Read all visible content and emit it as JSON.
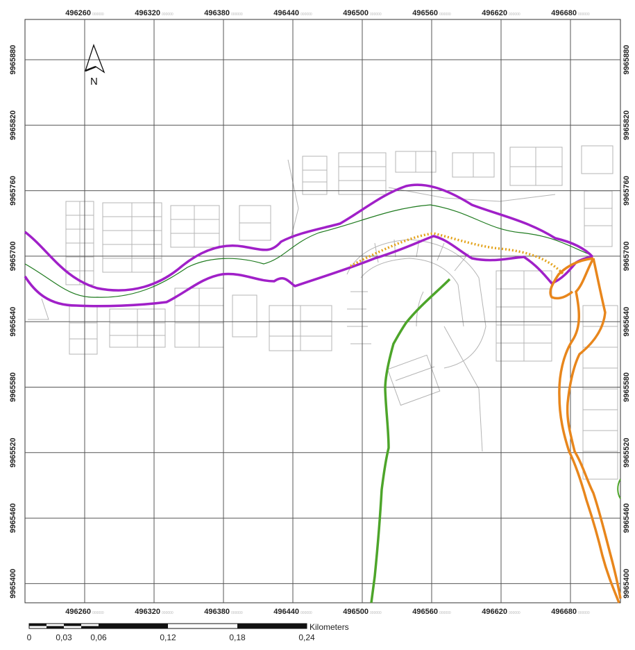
{
  "map": {
    "x_ticks": [
      "496260",
      "496320",
      "496380",
      "496440",
      "496500",
      "496560",
      "496620",
      "496680"
    ],
    "y_ticks": [
      "9965880",
      "9965820",
      "9965760",
      "9965700",
      "9965640",
      "9965580",
      "9965520",
      "9965460",
      "9965400"
    ],
    "tick_suffix": "000000",
    "north_label": "N",
    "grid_color": "#555555",
    "parcel_color": "#b4b4b4",
    "layers": [
      {
        "name": "river-banks",
        "color": "#a020c8"
      },
      {
        "name": "stream-centerline",
        "color": "#1e7a1e"
      },
      {
        "name": "green-stream",
        "color": "#4da52a"
      },
      {
        "name": "orange-stream",
        "color": "#e8861c"
      },
      {
        "name": "orange-dotted-line",
        "color": "#e3a21a"
      }
    ]
  },
  "scale_bar": {
    "unit": "Kilometers",
    "labels": [
      "0",
      "0,03",
      "0,06",
      "0,12",
      "0,18",
      "0,24"
    ]
  }
}
